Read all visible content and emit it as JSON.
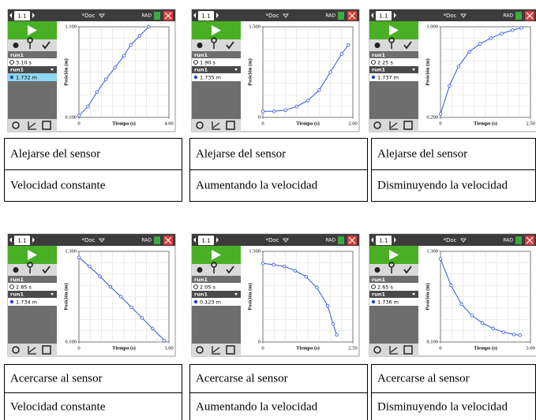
{
  "panels": [
    {
      "screen": {
        "tab": "1.1",
        "doc": "*Doc",
        "mode": "RAD",
        "run_a": "run1",
        "time": "3.10 s",
        "run_b": "run1",
        "reading": "1.732 m",
        "graph": {
          "type": "line",
          "y_label": "Posición (m)",
          "x_label": "Tiempo (s)",
          "xlim": [
            0,
            4
          ],
          "ylim": [
            0.1,
            1.1
          ],
          "xticks": [
            0,
            {
              "value": 4,
              "label": "4.00"
            }
          ],
          "yticks": [
            {
              "value": 0.1,
              "label": "0.100"
            },
            {
              "value": 1.1,
              "label": "1.100"
            }
          ],
          "x": [
            0,
            0.4,
            0.8,
            1.2,
            1.6,
            2.0,
            2.3,
            2.7,
            3.1
          ],
          "y": [
            0.12,
            0.22,
            0.38,
            0.52,
            0.65,
            0.78,
            0.9,
            1.0,
            1.1
          ]
        }
      },
      "table": [
        "Alejarse del sensor",
        "Velocidad constante"
      ]
    },
    {
      "screen": {
        "tab": "1.1",
        "doc": "*Doc",
        "mode": "RAD",
        "run_a": "run1",
        "time": "1.90 s",
        "run_b": "run1",
        "reading": "1.735 m",
        "graph": {
          "type": "line",
          "y_label": "Posición (m)",
          "x_label": "Tiempo (s)",
          "xlim": [
            0,
            2
          ],
          "ylim": [
            0,
            1.5
          ],
          "xticks": [
            0,
            {
              "value": 2,
              "label": "2.00"
            }
          ],
          "yticks": [
            0,
            {
              "value": 1.5,
              "label": "1.500"
            }
          ],
          "x": [
            0,
            0.25,
            0.5,
            0.75,
            1.0,
            1.25,
            1.5,
            1.75,
            1.9
          ],
          "y": [
            0.1,
            0.1,
            0.12,
            0.18,
            0.28,
            0.45,
            0.75,
            1.05,
            1.2
          ]
        }
      },
      "table": [
        "Alejarse del sensor",
        "Aumentando la velocidad"
      ]
    },
    {
      "screen": {
        "tab": "1.1",
        "doc": "*Doc",
        "mode": "RAD",
        "run_a": "run1",
        "time": "2.25 s",
        "run_b": "run1",
        "reading": "1.737 m",
        "graph": {
          "type": "line",
          "y_label": "Posición (m)",
          "x_label": "Tiempo (s)",
          "xlim": [
            0,
            2.5
          ],
          "ylim": [
            0.2,
            1.0
          ],
          "xticks": [
            0,
            {
              "value": 2.5,
              "label": "2.50"
            }
          ],
          "yticks": [
            {
              "value": 0.2,
              "label": "0.200"
            },
            {
              "value": 1.0,
              "label": "1.000"
            }
          ],
          "x": [
            0,
            0.25,
            0.5,
            0.8,
            1.1,
            1.4,
            1.7,
            2.0,
            2.25
          ],
          "y": [
            0.23,
            0.48,
            0.65,
            0.78,
            0.85,
            0.9,
            0.94,
            0.97,
            0.99
          ]
        }
      },
      "table": [
        "Alejarse del sensor",
        "Disminuyendo la velocidad"
      ]
    },
    {
      "screen": {
        "tab": "1.1",
        "doc": "*Doc",
        "mode": "RAD",
        "run_a": "run1",
        "time": "2.85 s",
        "run_b": "run1",
        "reading": "1.734 m",
        "graph": {
          "type": "line",
          "y_label": "Posición (m)",
          "x_label": "Tiempo (s)",
          "xlim": [
            0,
            3
          ],
          "ylim": [
            0.1,
            1.3
          ],
          "xticks": [
            0,
            {
              "value": 3,
              "label": "3.00"
            }
          ],
          "yticks": [
            {
              "value": 0.1,
              "label": "0.100"
            },
            {
              "value": 1.3,
              "label": "1.300"
            }
          ],
          "x": [
            0,
            0.35,
            0.7,
            1.05,
            1.4,
            1.75,
            2.1,
            2.45,
            2.85
          ],
          "y": [
            1.22,
            1.1,
            0.97,
            0.83,
            0.7,
            0.56,
            0.42,
            0.28,
            0.12
          ]
        }
      },
      "table": [
        "Acercarse al sensor",
        "Velocidad constante"
      ]
    },
    {
      "screen": {
        "tab": "1.1",
        "doc": "*Doc",
        "mode": "RAD",
        "run_a": "run1",
        "time": "2.05 s",
        "run_b": "run1",
        "reading": "0.123 m",
        "graph": {
          "type": "line",
          "y_label": "Posición (m)",
          "x_label": "Tiempo (s)",
          "xlim": [
            0,
            2.5
          ],
          "ylim": [
            0,
            1.5
          ],
          "xticks": [
            0,
            {
              "value": 2.5,
              "label": "2.50"
            }
          ],
          "yticks": [
            0,
            {
              "value": 1.5,
              "label": "1.500"
            }
          ],
          "x": [
            0,
            0.3,
            0.6,
            0.9,
            1.2,
            1.5,
            1.8,
            1.95,
            2.05
          ],
          "y": [
            1.3,
            1.28,
            1.25,
            1.18,
            1.08,
            0.9,
            0.6,
            0.3,
            0.12
          ]
        }
      },
      "table": [
        "Acercarse al sensor",
        "Aumentando la velocidad"
      ]
    },
    {
      "screen": {
        "tab": "1.1",
        "doc": "*Doc",
        "mode": "RAD",
        "run_a": "run1",
        "time": "2.65 s",
        "run_b": "run1",
        "reading": "1.736 m",
        "graph": {
          "type": "line",
          "y_label": "Posición (m)",
          "x_label": "Tiempo (s)",
          "xlim": [
            0,
            3
          ],
          "ylim": [
            0.1,
            1.3
          ],
          "xticks": [
            0,
            {
              "value": 3,
              "label": "3.00"
            }
          ],
          "yticks": [
            {
              "value": 0.1,
              "label": "0.100"
            },
            {
              "value": 1.3,
              "label": "1.300"
            }
          ],
          "x": [
            0,
            0.35,
            0.7,
            1.05,
            1.4,
            1.75,
            2.1,
            2.45,
            2.65
          ],
          "y": [
            1.2,
            0.85,
            0.6,
            0.45,
            0.35,
            0.28,
            0.23,
            0.2,
            0.19
          ]
        }
      },
      "table": [
        "Acercarse al sensor",
        "Disminuyendo la velocidad"
      ]
    }
  ]
}
